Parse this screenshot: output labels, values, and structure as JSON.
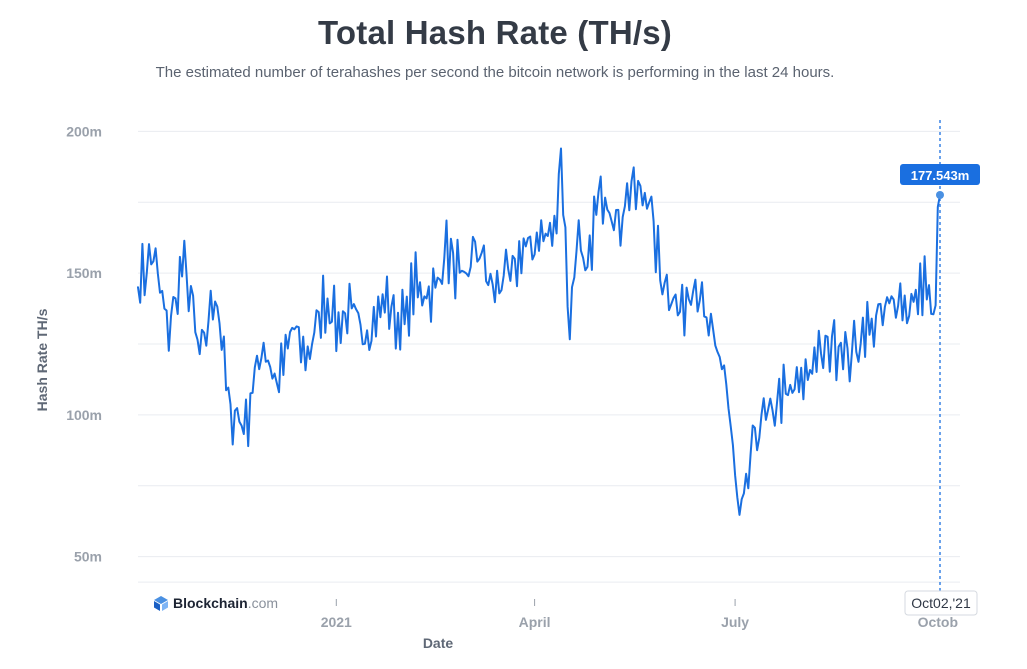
{
  "title": "Total Hash Rate (TH/s)",
  "subtitle": "The estimated number of terahashes per second the bitcoin network is performing in the last 24 hours.",
  "brand": {
    "name": "Blockchain",
    "suffix": ".com",
    "icon": "blockchain-logo-icon"
  },
  "tooltip": {
    "value_label": "177.543m",
    "date_label": "Oct02,'21"
  },
  "colors": {
    "line": "#1a6fe0",
    "grid": "#e9ecf0",
    "tooltip_bg": "#1a6fe0",
    "axis_text": "#9aa1ab"
  },
  "chart_data": {
    "type": "line",
    "title": "Total Hash Rate (TH/s)",
    "subtitle": "The estimated number of terahashes per second the bitcoin network is performing in the last 24 hours.",
    "xlabel": "Date",
    "ylabel": "Hash Rate TH/s",
    "y_ticks": [
      50,
      100,
      150,
      200
    ],
    "y_tick_labels": [
      "50m",
      "100m",
      "150m",
      "200m"
    ],
    "ylim": [
      40,
      204
    ],
    "xlim": [
      "2020-10-03",
      "2021-10-02"
    ],
    "x_ticks": [
      "2021-01-01",
      "2021-04-01",
      "2021-07-01",
      "2021-10-01"
    ],
    "x_tick_labels": [
      "2021",
      "April",
      "July",
      "Octob"
    ],
    "grid": true,
    "series": [
      {
        "values_unit": "million TH/s",
        "x": [
          "2020-10-03",
          "2020-10-10",
          "2020-10-17",
          "2020-10-24",
          "2020-10-31",
          "2020-11-07",
          "2020-11-14",
          "2020-11-21",
          "2020-11-28",
          "2020-12-05",
          "2020-12-12",
          "2020-12-19",
          "2020-12-26",
          "2021-01-02",
          "2021-01-09",
          "2021-01-16",
          "2021-01-23",
          "2021-01-30",
          "2021-02-06",
          "2021-02-13",
          "2021-02-20",
          "2021-02-27",
          "2021-03-06",
          "2021-03-13",
          "2021-03-20",
          "2021-03-27",
          "2021-04-03",
          "2021-04-10",
          "2021-04-13",
          "2021-04-17",
          "2021-04-20",
          "2021-04-24",
          "2021-05-01",
          "2021-05-08",
          "2021-05-15",
          "2021-05-22",
          "2021-05-29",
          "2021-06-05",
          "2021-06-12",
          "2021-06-19",
          "2021-06-26",
          "2021-06-29",
          "2021-07-03",
          "2021-07-10",
          "2021-07-17",
          "2021-07-24",
          "2021-07-31",
          "2021-08-07",
          "2021-08-14",
          "2021-08-21",
          "2021-08-28",
          "2021-09-04",
          "2021-09-11",
          "2021-09-18",
          "2021-09-25",
          "2021-09-29",
          "2021-10-02"
        ],
        "values": [
          145,
          157,
          130,
          155,
          122,
          143,
          101,
          96,
          125,
          110,
          132,
          120,
          140,
          131,
          138,
          126,
          142,
          130,
          147,
          140,
          158,
          148,
          160,
          144,
          150,
          158,
          162,
          165,
          191,
          128,
          163,
          150,
          181,
          165,
          180,
          178,
          148,
          136,
          145,
          132,
          117,
          95,
          63,
          94,
          102,
          108,
          112,
          120,
          126,
          120,
          128,
          134,
          142,
          136,
          148,
          133,
          177.543
        ]
      }
    ]
  }
}
